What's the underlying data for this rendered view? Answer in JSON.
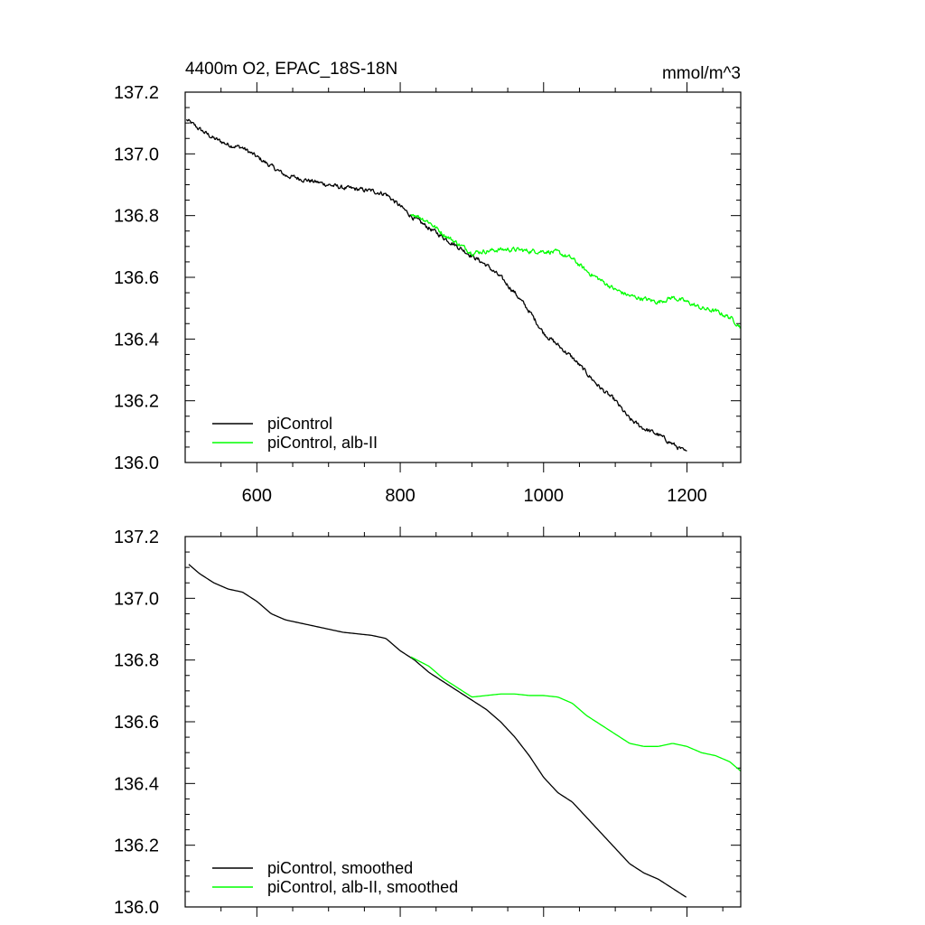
{
  "chart_data": [
    {
      "type": "line",
      "title": "4400m O2, EPAC_18S-18N",
      "units": "mmol/m^3",
      "xlim": [
        500,
        1275
      ],
      "ylim": [
        136.0,
        137.2
      ],
      "xticks": [
        600,
        800,
        1000,
        1200
      ],
      "yticks": [
        136.0,
        136.2,
        136.4,
        136.6,
        136.8,
        137.0,
        137.2
      ],
      "x_tick_labels": [
        "600",
        "800",
        "1000",
        "1200"
      ],
      "y_tick_labels": [
        "136.0",
        "136.2",
        "136.4",
        "136.6",
        "136.8",
        "137.0",
        "137.2"
      ],
      "grid": false,
      "legend_position": "bottom-left",
      "series": [
        {
          "name": "piControl",
          "color": "#000000",
          "noisy": true,
          "x": [
            502,
            520,
            540,
            560,
            580,
            600,
            620,
            640,
            660,
            680,
            700,
            720,
            740,
            760,
            780,
            800,
            820,
            840,
            860,
            880,
            900,
            920,
            940,
            960,
            980,
            1000,
            1020,
            1040,
            1060,
            1080,
            1100,
            1120,
            1140,
            1160,
            1180,
            1200
          ],
          "values": [
            137.11,
            137.08,
            137.05,
            137.03,
            137.02,
            136.99,
            136.96,
            136.93,
            136.92,
            136.91,
            136.9,
            136.89,
            136.885,
            136.88,
            136.87,
            136.83,
            136.79,
            136.76,
            136.73,
            136.7,
            136.67,
            136.64,
            136.6,
            136.55,
            136.49,
            136.42,
            136.38,
            136.34,
            136.29,
            136.24,
            136.2,
            136.14,
            136.11,
            136.09,
            136.06,
            136.03
          ]
        },
        {
          "name": "piControl, alb-II",
          "color": "#00ff00",
          "noisy": true,
          "x": [
            815,
            840,
            860,
            880,
            900,
            920,
            940,
            960,
            980,
            1000,
            1020,
            1040,
            1060,
            1080,
            1100,
            1120,
            1140,
            1160,
            1180,
            1200,
            1220,
            1240,
            1260,
            1275
          ],
          "values": [
            136.81,
            136.78,
            136.74,
            136.71,
            136.68,
            136.685,
            136.69,
            136.69,
            136.685,
            136.685,
            136.68,
            136.66,
            136.62,
            136.59,
            136.56,
            136.54,
            136.53,
            136.52,
            136.535,
            136.52,
            136.5,
            136.49,
            136.47,
            136.44
          ]
        }
      ]
    },
    {
      "type": "line",
      "xlim": [
        500,
        1275
      ],
      "ylim": [
        136.0,
        137.2
      ],
      "yticks": [
        136.0,
        136.2,
        136.4,
        136.6,
        136.8,
        137.0,
        137.2
      ],
      "y_tick_labels": [
        "136.0",
        "136.2",
        "136.4",
        "136.6",
        "136.8",
        "137.0",
        "137.2"
      ],
      "grid": false,
      "legend_position": "bottom-left",
      "series": [
        {
          "name": "piControl, smoothed",
          "color": "#000000",
          "noisy": false,
          "x": [
            505,
            520,
            540,
            560,
            580,
            600,
            620,
            640,
            660,
            680,
            700,
            720,
            740,
            760,
            780,
            800,
            820,
            840,
            860,
            880,
            900,
            920,
            940,
            960,
            980,
            1000,
            1020,
            1040,
            1060,
            1080,
            1100,
            1120,
            1140,
            1160,
            1180,
            1200
          ],
          "values": [
            137.11,
            137.08,
            137.05,
            137.03,
            137.02,
            136.99,
            136.95,
            136.93,
            136.92,
            136.91,
            136.9,
            136.89,
            136.885,
            136.88,
            136.87,
            136.83,
            136.8,
            136.76,
            136.73,
            136.7,
            136.67,
            136.64,
            136.6,
            136.55,
            136.49,
            136.42,
            136.37,
            136.34,
            136.29,
            136.24,
            136.19,
            136.14,
            136.11,
            136.09,
            136.06,
            136.03
          ]
        },
        {
          "name": "piControl, alb-II, smoothed",
          "color": "#00ff00",
          "noisy": false,
          "x": [
            815,
            840,
            860,
            880,
            900,
            920,
            940,
            960,
            980,
            1000,
            1020,
            1040,
            1060,
            1080,
            1100,
            1120,
            1140,
            1160,
            1180,
            1200,
            1220,
            1240,
            1260,
            1275
          ],
          "values": [
            136.81,
            136.78,
            136.74,
            136.71,
            136.68,
            136.685,
            136.69,
            136.69,
            136.685,
            136.685,
            136.68,
            136.66,
            136.62,
            136.59,
            136.56,
            136.53,
            136.52,
            136.52,
            136.53,
            136.52,
            136.5,
            136.49,
            136.47,
            136.44
          ]
        }
      ]
    }
  ]
}
